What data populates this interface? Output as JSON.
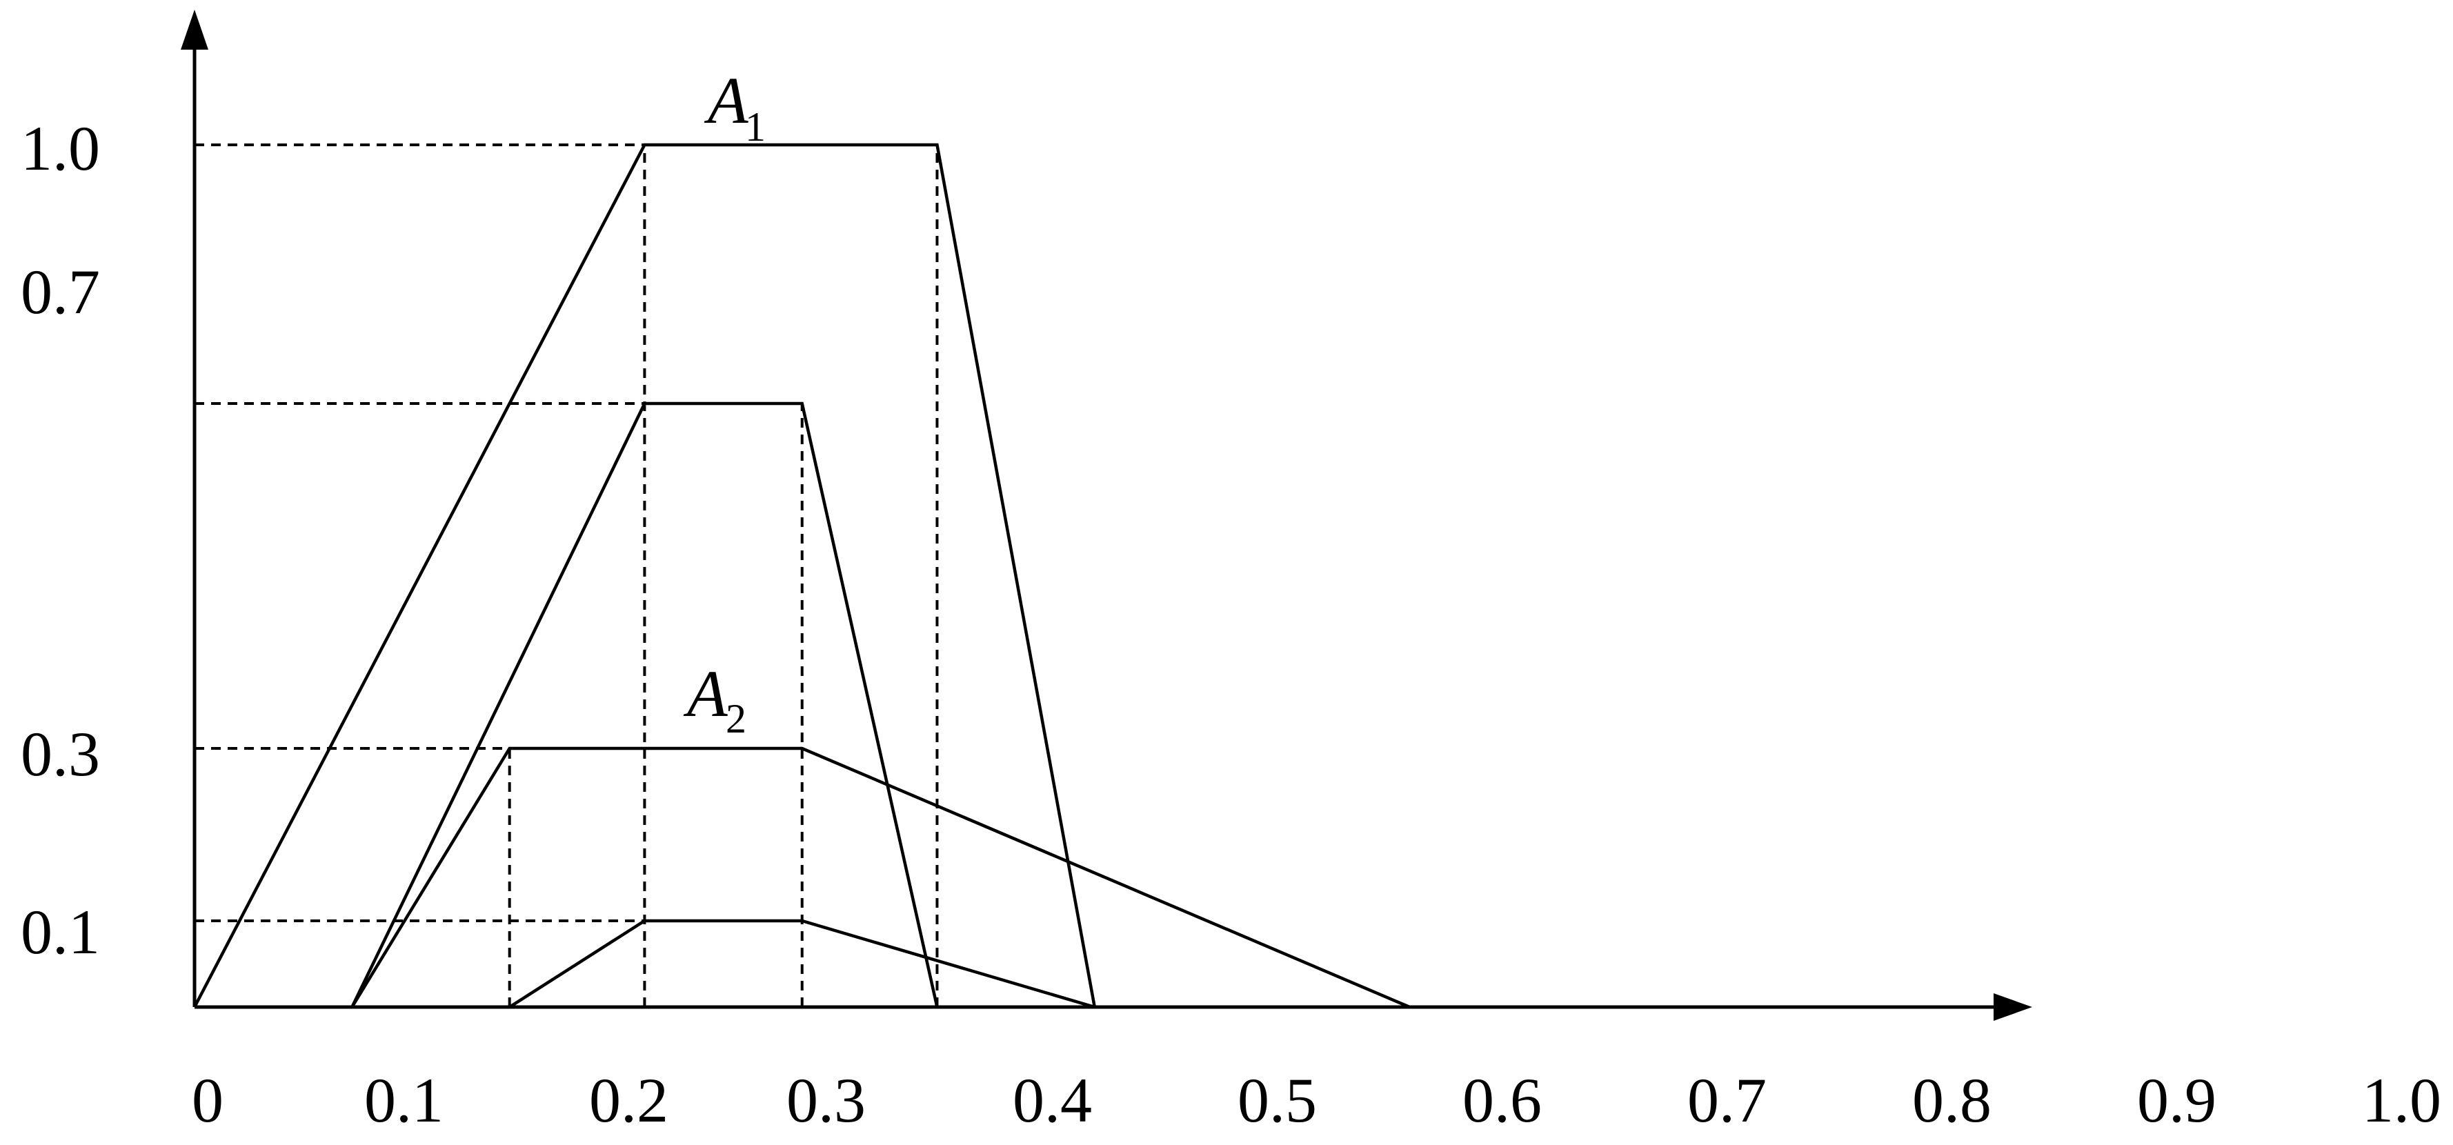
{
  "y_ticks": [
    "1.0",
    "0.7",
    "0.3",
    "0.1"
  ],
  "x_ticks": [
    "0",
    "0.1",
    "0.2",
    "0.3",
    "0.4",
    "0.5",
    "0.6",
    "0.7",
    "0.8",
    "0.9",
    "1.0"
  ],
  "labels": {
    "a1_main": "A",
    "a1_sub": "1",
    "a2_main": "A",
    "a2_sub": "2"
  },
  "sets": [
    {
      "name": "A1",
      "points": [
        [
          0,
          0
        ],
        [
          0.2,
          1.0
        ],
        [
          0.33,
          1.0
        ],
        [
          0.4,
          0
        ]
      ]
    },
    {
      "name": "A2",
      "points": [
        [
          0.14,
          0
        ],
        [
          0.2,
          0.1
        ],
        [
          0.27,
          0.1
        ],
        [
          0.4,
          0
        ]
      ]
    },
    {
      "name": "inner-0.7",
      "points": [
        [
          0.07,
          0
        ],
        [
          0.2,
          0.7
        ],
        [
          0.27,
          0.7
        ],
        [
          0.33,
          0
        ]
      ]
    },
    {
      "name": "inner-0.3",
      "points": [
        [
          0.07,
          0
        ],
        [
          0.14,
          0.3
        ],
        [
          0.27,
          0.3
        ],
        [
          0.54,
          0
        ]
      ]
    }
  ],
  "guides": {
    "horizontal": [
      [
        1.0,
        0.2
      ],
      [
        0.7,
        0.2
      ],
      [
        0.3,
        0.14
      ],
      [
        0.1,
        0.2
      ]
    ],
    "vertical": [
      [
        0.2,
        1.0
      ],
      [
        0.33,
        1.0
      ],
      [
        0.14,
        0.3
      ],
      [
        0.27,
        0.7
      ]
    ]
  }
}
